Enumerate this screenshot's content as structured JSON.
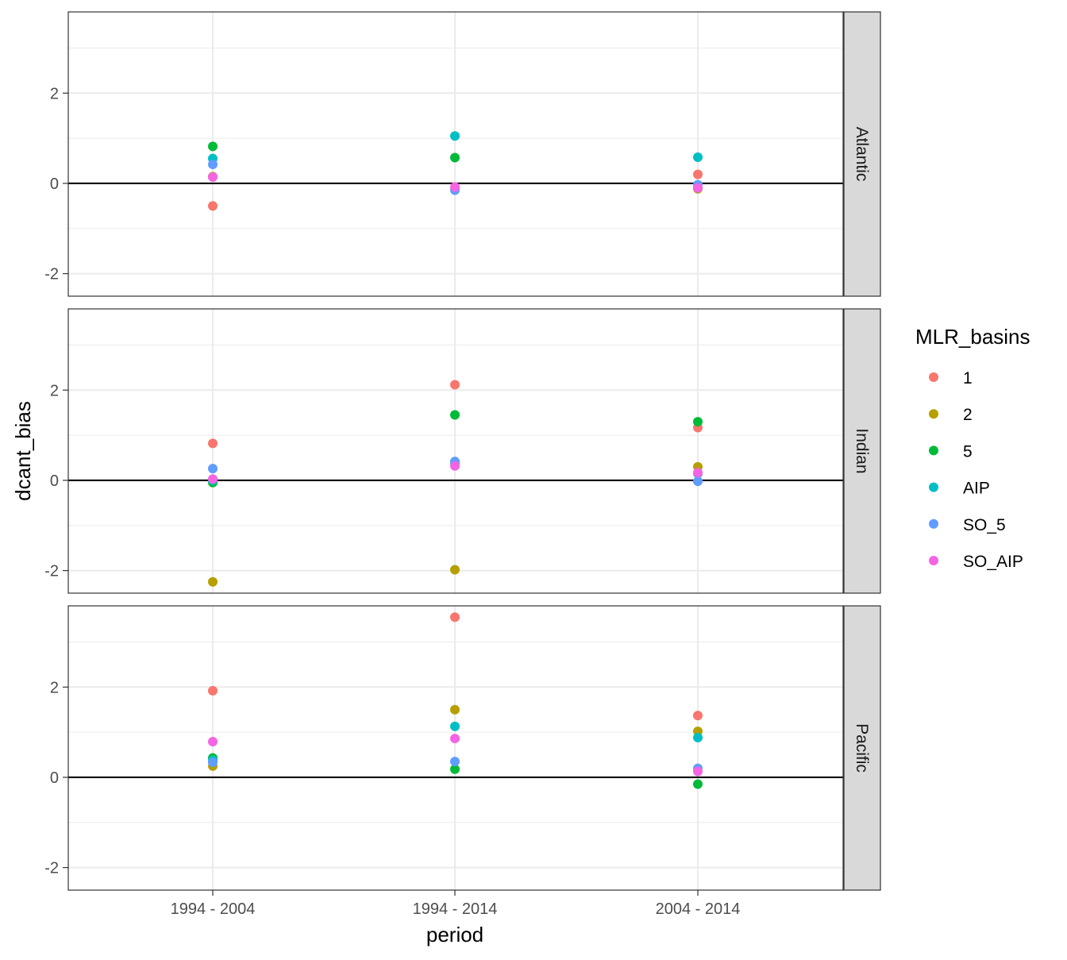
{
  "chart_data": {
    "type": "scatter",
    "xlabel": "period",
    "ylabel": "dcant_bias",
    "x_categories": [
      "1994 - 2004",
      "1994 - 2014",
      "2004 - 2014"
    ],
    "ylim": [
      -2.5,
      3.8
    ],
    "y_ticks": [
      -2,
      0,
      2
    ],
    "y_tick_labels": [
      "-2",
      "0",
      "2"
    ],
    "grid": true,
    "hline": 0,
    "legend": {
      "title": "MLR_basins",
      "position": "right",
      "entries": [
        "1",
        "2",
        "5",
        "AIP",
        "SO_5",
        "SO_AIP"
      ]
    },
    "colors": {
      "1": "#F8766D",
      "2": "#B79F00",
      "5": "#00BA38",
      "AIP": "#00BFC4",
      "SO_5": "#619CFF",
      "SO_AIP": "#F564E3"
    },
    "panels": [
      {
        "name": "Atlantic",
        "series": [
          {
            "name": "1",
            "values": [
              -0.5,
              -0.1,
              0.2
            ]
          },
          {
            "name": "2",
            "values": [
              0.15,
              -0.1,
              -0.12
            ]
          },
          {
            "name": "5",
            "values": [
              0.82,
              0.57,
              -0.1
            ]
          },
          {
            "name": "AIP",
            "values": [
              0.55,
              1.05,
              0.58
            ]
          },
          {
            "name": "SO_5",
            "values": [
              0.42,
              -0.15,
              -0.03
            ]
          },
          {
            "name": "SO_AIP",
            "values": [
              0.14,
              -0.08,
              -0.1
            ]
          }
        ]
      },
      {
        "name": "Indian",
        "series": [
          {
            "name": "1",
            "values": [
              0.82,
              2.12,
              1.17
            ]
          },
          {
            "name": "2",
            "values": [
              -2.25,
              -1.98,
              0.3
            ]
          },
          {
            "name": "5",
            "values": [
              -0.05,
              1.45,
              1.3
            ]
          },
          {
            "name": "AIP",
            "values": [
              0.0,
              0.38,
              0.15
            ]
          },
          {
            "name": "SO_5",
            "values": [
              0.26,
              0.42,
              -0.02
            ]
          },
          {
            "name": "SO_AIP",
            "values": [
              0.03,
              0.32,
              0.17
            ]
          }
        ]
      },
      {
        "name": "Pacific",
        "series": [
          {
            "name": "1",
            "values": [
              1.92,
              3.55,
              1.37
            ]
          },
          {
            "name": "2",
            "values": [
              0.25,
              1.5,
              1.02
            ]
          },
          {
            "name": "5",
            "values": [
              0.43,
              0.18,
              -0.15
            ]
          },
          {
            "name": "AIP",
            "values": [
              0.38,
              1.13,
              0.88
            ]
          },
          {
            "name": "SO_5",
            "values": [
              0.33,
              0.35,
              0.2
            ]
          },
          {
            "name": "SO_AIP",
            "values": [
              0.79,
              0.86,
              0.13
            ]
          }
        ]
      }
    ]
  }
}
